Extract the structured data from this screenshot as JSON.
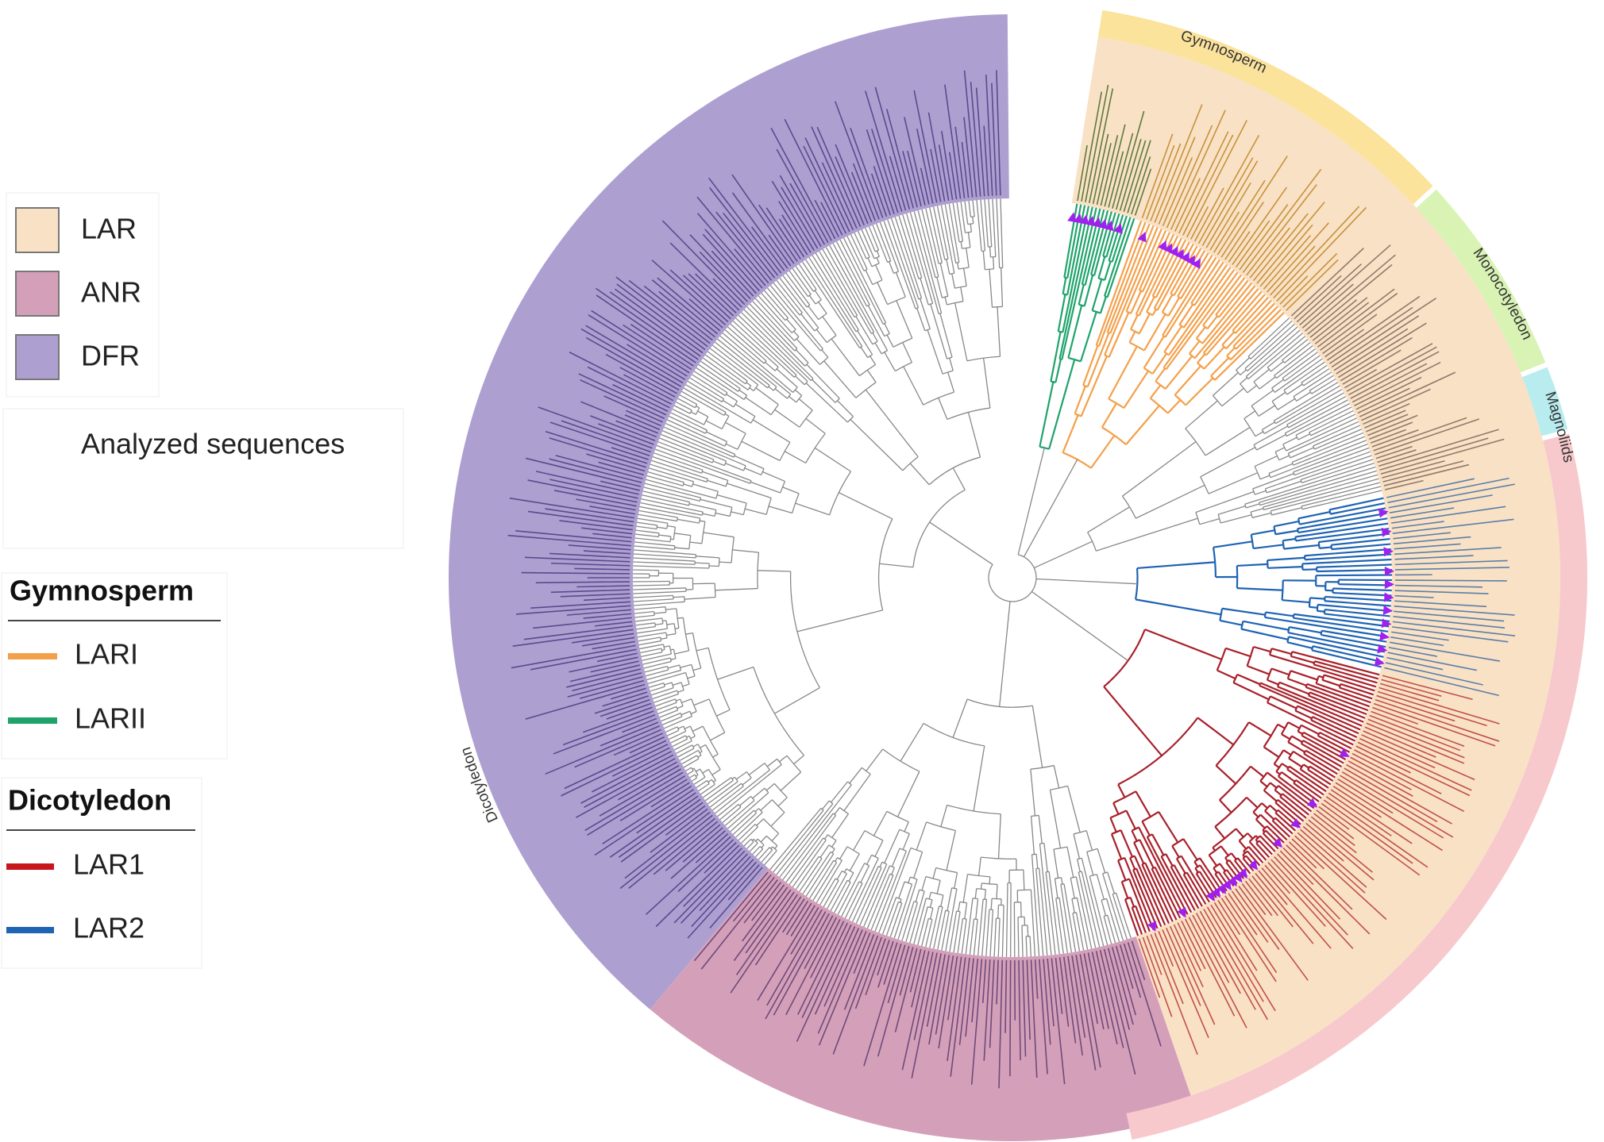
{
  "legend": {
    "fills": [
      "LAR",
      "ANR",
      "DFR"
    ],
    "marker": "Analyzed sequences",
    "groups": [
      {
        "title": "Gymnosperm",
        "items": [
          "LARI",
          "LARII"
        ]
      },
      {
        "title": "Dicotyledon",
        "items": [
          "LAR1",
          "LAR2"
        ]
      }
    ]
  },
  "clades": [
    "Gymnosperm",
    "Monocotyledon",
    "Magnoliids",
    "Dicotyledon"
  ]
}
